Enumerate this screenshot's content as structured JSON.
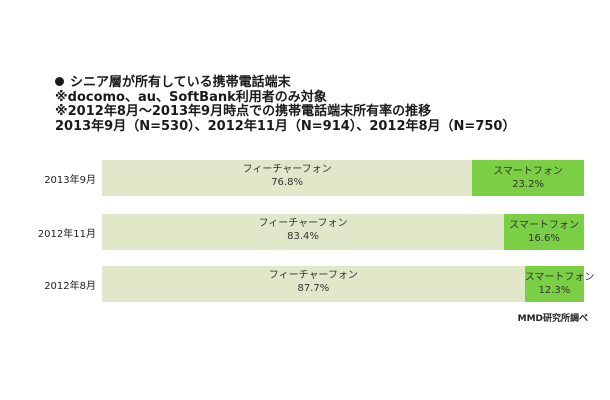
{
  "header": {
    "title": "シニア層が所有している携帯電話端末",
    "note1": "※docomo、au、SoftBank利用者のみ対象",
    "note2": "※2012年8月～2013年9月時点での携帯電話端末所有率の推移",
    "note3": "2013年9月（N=530）、2012年11月（N=914）、2012年8月（N=750）"
  },
  "chart_data": {
    "type": "bar",
    "orientation": "horizontal",
    "stacked": true,
    "categories": [
      "2013年9月",
      "2012年11月",
      "2012年8月"
    ],
    "series": [
      {
        "name": "フィーチャーフォン",
        "values": [
          76.8,
          83.4,
          87.7
        ],
        "labels": [
          "76.8%",
          "83.4%",
          "87.7%"
        ],
        "color": "#e0e8c9"
      },
      {
        "name": "スマートフォン",
        "values": [
          23.2,
          16.6,
          12.3
        ],
        "labels": [
          "23.2%",
          "16.6%",
          "12.3%"
        ],
        "color": "#7bcf45"
      }
    ],
    "xlim": [
      0,
      100
    ],
    "grid": false
  },
  "source": "MMD研究所調べ"
}
